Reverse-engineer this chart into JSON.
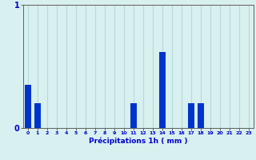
{
  "hours": [
    0,
    1,
    2,
    3,
    4,
    5,
    6,
    7,
    8,
    9,
    10,
    11,
    12,
    13,
    14,
    15,
    16,
    17,
    18,
    19,
    20,
    21,
    22,
    23
  ],
  "values": [
    0.35,
    0.2,
    0,
    0,
    0,
    0,
    0,
    0,
    0,
    0,
    0,
    0.2,
    0,
    0,
    0.62,
    0,
    0,
    0.2,
    0.2,
    0,
    0,
    0,
    0,
    0
  ],
  "bar_color": "#0033cc",
  "background_color": "#d8f0f0",
  "hgrid_color": "#e8b0b0",
  "vgrid_color": "#b8d8d8",
  "axis_color": "#606060",
  "text_color": "#0000cc",
  "xlabel": "Précipitations 1h ( mm )",
  "ylim": [
    0,
    1.0
  ],
  "yticks": [
    0,
    1
  ],
  "ytick_labels": [
    "0",
    "1"
  ]
}
